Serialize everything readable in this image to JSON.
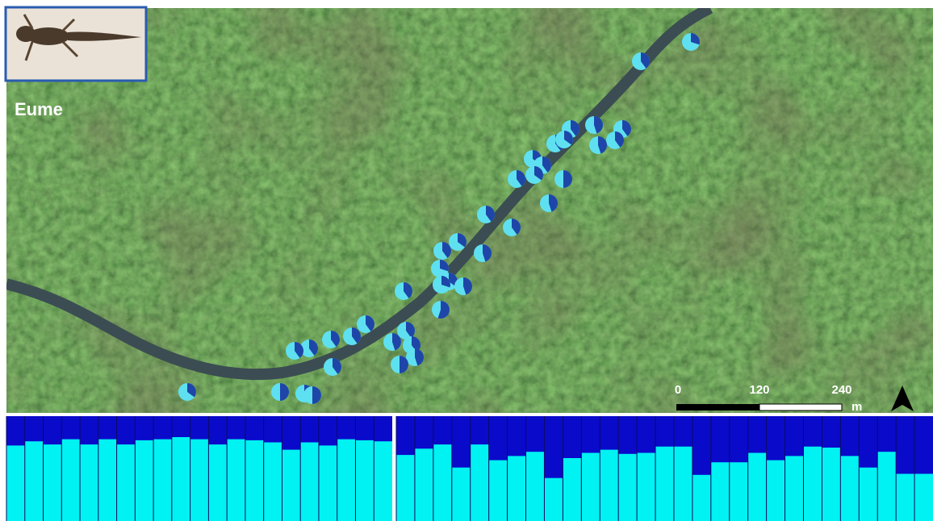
{
  "map": {
    "label": "Eume",
    "scale_bar": {
      "ticks": [
        0,
        120,
        240
      ],
      "unit": "m"
    },
    "pies": {
      "light_color": "#5fe0f0",
      "dark_color": "#1e46a8",
      "dark_fraction": [
        0.3,
        0.4,
        0.4,
        0.45,
        0.4,
        0.4,
        0.45,
        0.4,
        0.35,
        0.35,
        0.4,
        0.4,
        0.35,
        0.5,
        0.45,
        0.4,
        0.4,
        0.35,
        0.4,
        0.45,
        0.3,
        0.35,
        0.45,
        0.3,
        0.55,
        0.4,
        0.4,
        0.4,
        0.4,
        0.4,
        0.45,
        0.4,
        0.45,
        0.5,
        0.4,
        0.4,
        0.4,
        0.35,
        0.5,
        0.45,
        0.5
      ]
    }
  },
  "chart_data": {
    "type": "stacked-proportion",
    "light_color": "#00f2f2",
    "dark_color": "#0a0acb",
    "groups": [
      {
        "values": [
          0.72,
          0.76,
          0.73,
          0.78,
          0.73,
          0.78,
          0.73,
          0.77,
          0.78,
          0.8,
          0.78,
          0.73,
          0.78,
          0.77,
          0.75,
          0.68,
          0.75,
          0.72,
          0.78,
          0.77,
          0.76
        ]
      },
      {
        "values": [
          0.63,
          0.69,
          0.73,
          0.51,
          0.73,
          0.58,
          0.62,
          0.66,
          0.41,
          0.6,
          0.65,
          0.68,
          0.64,
          0.65,
          0.71,
          0.71,
          0.44,
          0.56,
          0.56,
          0.65,
          0.58,
          0.62,
          0.71,
          0.7,
          0.62,
          0.51,
          0.66,
          0.45,
          0.45
        ]
      }
    ]
  }
}
